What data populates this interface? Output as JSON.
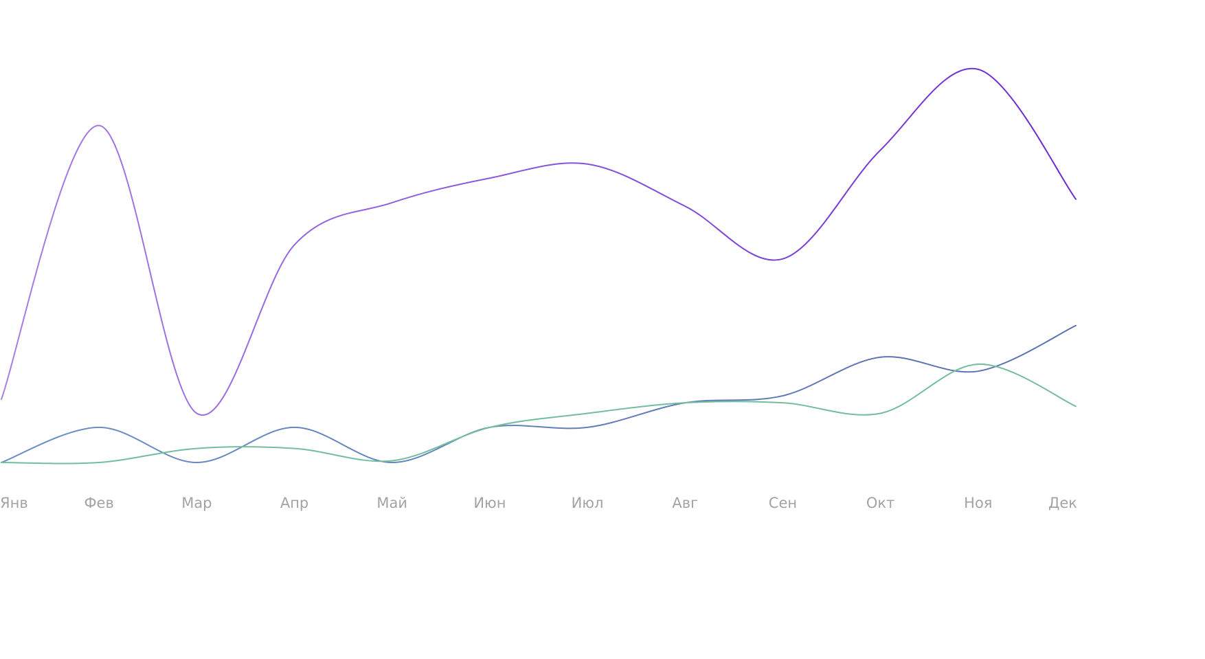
{
  "chart_data": {
    "type": "line",
    "categories": [
      "Янв",
      "Фев",
      "Мар",
      "Апр",
      "Май",
      "Июн",
      "Июл",
      "Авг",
      "Сен",
      "Окт",
      "Ноя",
      "Дек"
    ],
    "ylim": [
      0,
      12
    ],
    "grid": false,
    "legend_placement": "bottom",
    "series": [
      {
        "color_start": "#a77de5",
        "color_end": "#6a2bd1",
        "values": [
          1.8,
          9.6,
          1.4,
          6.2,
          7.4,
          8.1,
          8.5,
          7.3,
          5.8,
          8.9,
          11.2,
          7.5
        ]
      },
      {
        "color_start": "#6b8fc4",
        "color_end": "#5a6fb0",
        "values": [
          0,
          1.0,
          0,
          1.0,
          0,
          1.0,
          1.0,
          1.7,
          1.9,
          3.0,
          2.6,
          3.9
        ]
      },
      {
        "color_start": "#72bd9f",
        "color_end": "#72bd9f",
        "values": [
          0,
          0,
          0.4,
          0.4,
          0.05,
          1.0,
          1.4,
          1.7,
          1.7,
          1.4,
          2.8,
          1.6
        ]
      }
    ]
  }
}
